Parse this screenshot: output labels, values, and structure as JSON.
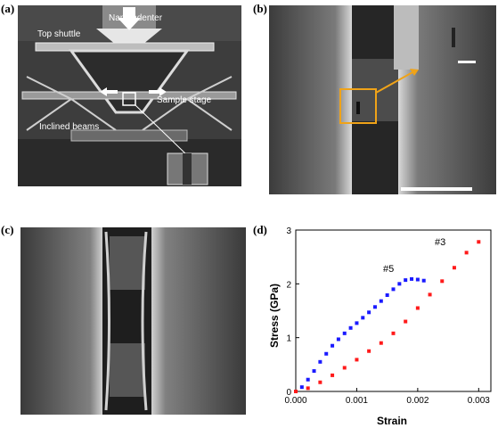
{
  "figure": {
    "panels": [
      {
        "id": "a",
        "label": "(a)"
      },
      {
        "id": "b",
        "label": "(b)"
      },
      {
        "id": "c",
        "label": "(c)"
      },
      {
        "id": "d",
        "label": "(d)"
      }
    ],
    "panel_a_annotations": {
      "nanoindenter": "Nanoindenter",
      "top_shuttle": "Top shuttle",
      "sample_stage": "Sample stage",
      "inclined_beams": "Inclined beams"
    },
    "colors": {
      "highlight_box": "#f0a318",
      "series_5": "#1a1aff",
      "series_3": "#ff1a1a"
    }
  },
  "chart_data": {
    "type": "scatter",
    "xlabel": "Strain",
    "ylabel": "Stress (GPa)",
    "xlim": [
      0,
      0.0032
    ],
    "ylim": [
      0,
      3
    ],
    "xticks": [
      "0.000",
      "0.001",
      "0.002",
      "0.003"
    ],
    "yticks": [
      "0",
      "1",
      "2",
      "3"
    ],
    "grid": false,
    "series": [
      {
        "name": "#5",
        "color": "#1a1aff",
        "x": [
          0,
          0.0001,
          0.0002,
          0.0003,
          0.0004,
          0.0005,
          0.0006,
          0.0007,
          0.0008,
          0.0009,
          0.001,
          0.0011,
          0.0012,
          0.0013,
          0.0014,
          0.0015,
          0.0016,
          0.0017,
          0.0018,
          0.0019,
          0.002,
          0.0021
        ],
        "y": [
          0,
          0.08,
          0.22,
          0.38,
          0.55,
          0.7,
          0.85,
          0.97,
          1.08,
          1.18,
          1.27,
          1.37,
          1.47,
          1.57,
          1.68,
          1.79,
          1.9,
          2.0,
          2.07,
          2.09,
          2.08,
          2.06
        ]
      },
      {
        "name": "#3",
        "color": "#ff1a1a",
        "x": [
          0,
          0.0002,
          0.0004,
          0.0006,
          0.0008,
          0.001,
          0.0012,
          0.0014,
          0.0016,
          0.0018,
          0.002,
          0.0022,
          0.0024,
          0.0026,
          0.0028,
          0.003
        ],
        "y": [
          0,
          0.06,
          0.17,
          0.3,
          0.44,
          0.59,
          0.75,
          0.9,
          1.08,
          1.3,
          1.55,
          1.8,
          2.05,
          2.3,
          2.58,
          2.78
        ]
      }
    ]
  }
}
